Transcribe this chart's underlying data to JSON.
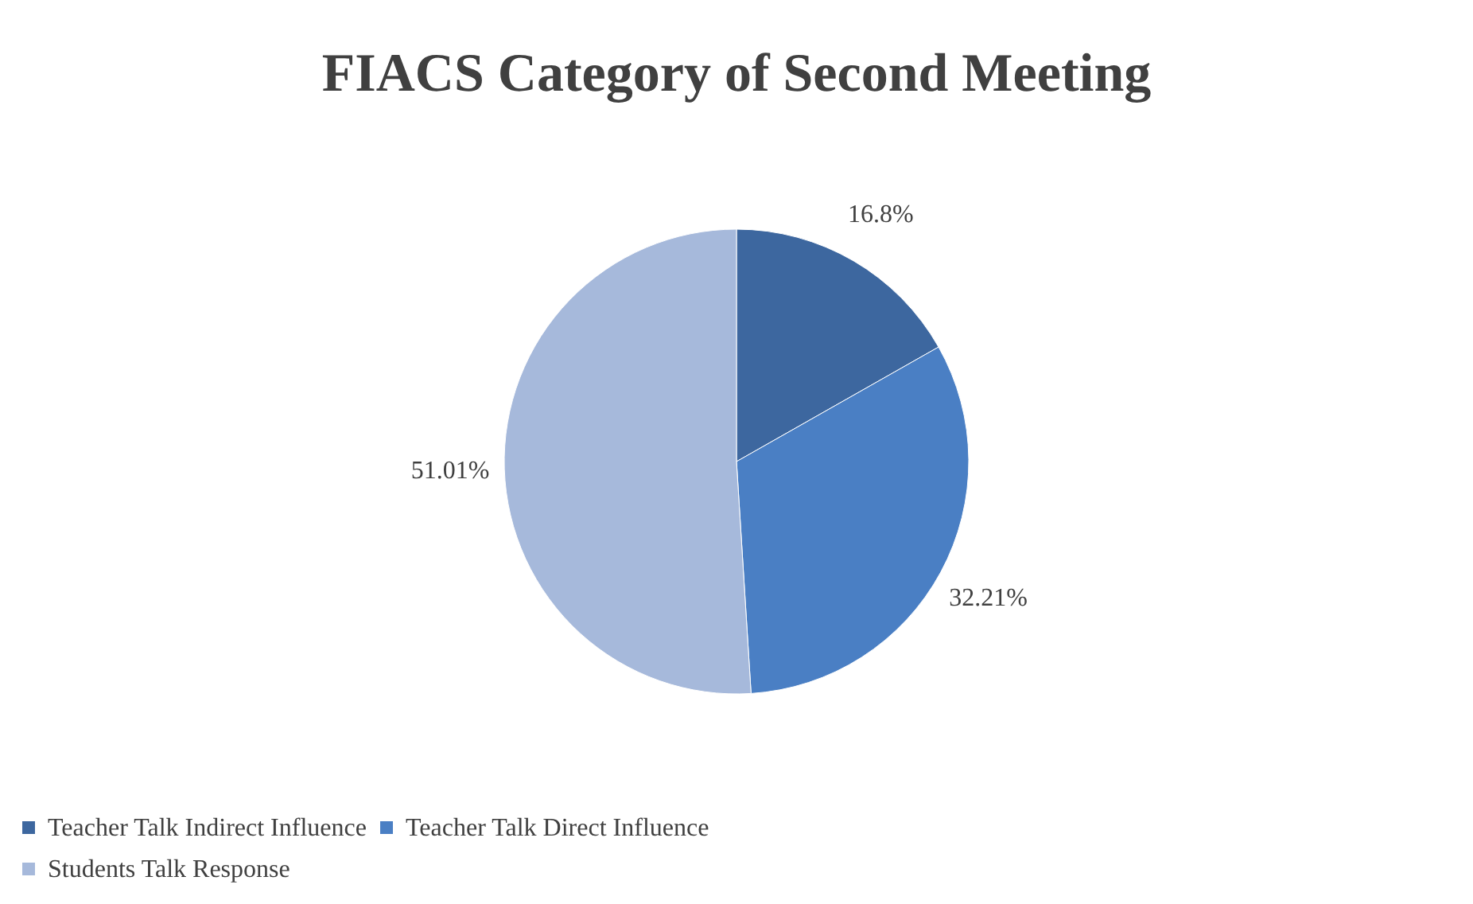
{
  "chart_data": {
    "type": "pie",
    "title": "FIACS Category of Second Meeting",
    "categories": [
      "Teacher Talk Indirect Influence",
      "Teacher  Talk Direct Influence",
      "Students Talk Response"
    ],
    "values": [
      16.8,
      32.21,
      51.01
    ],
    "colors": [
      "#3d679f",
      "#4a7fc4",
      "#a6b9db"
    ],
    "value_labels": [
      "16.8%",
      "32.21%",
      "51.01%"
    ],
    "legend": "bottom"
  }
}
